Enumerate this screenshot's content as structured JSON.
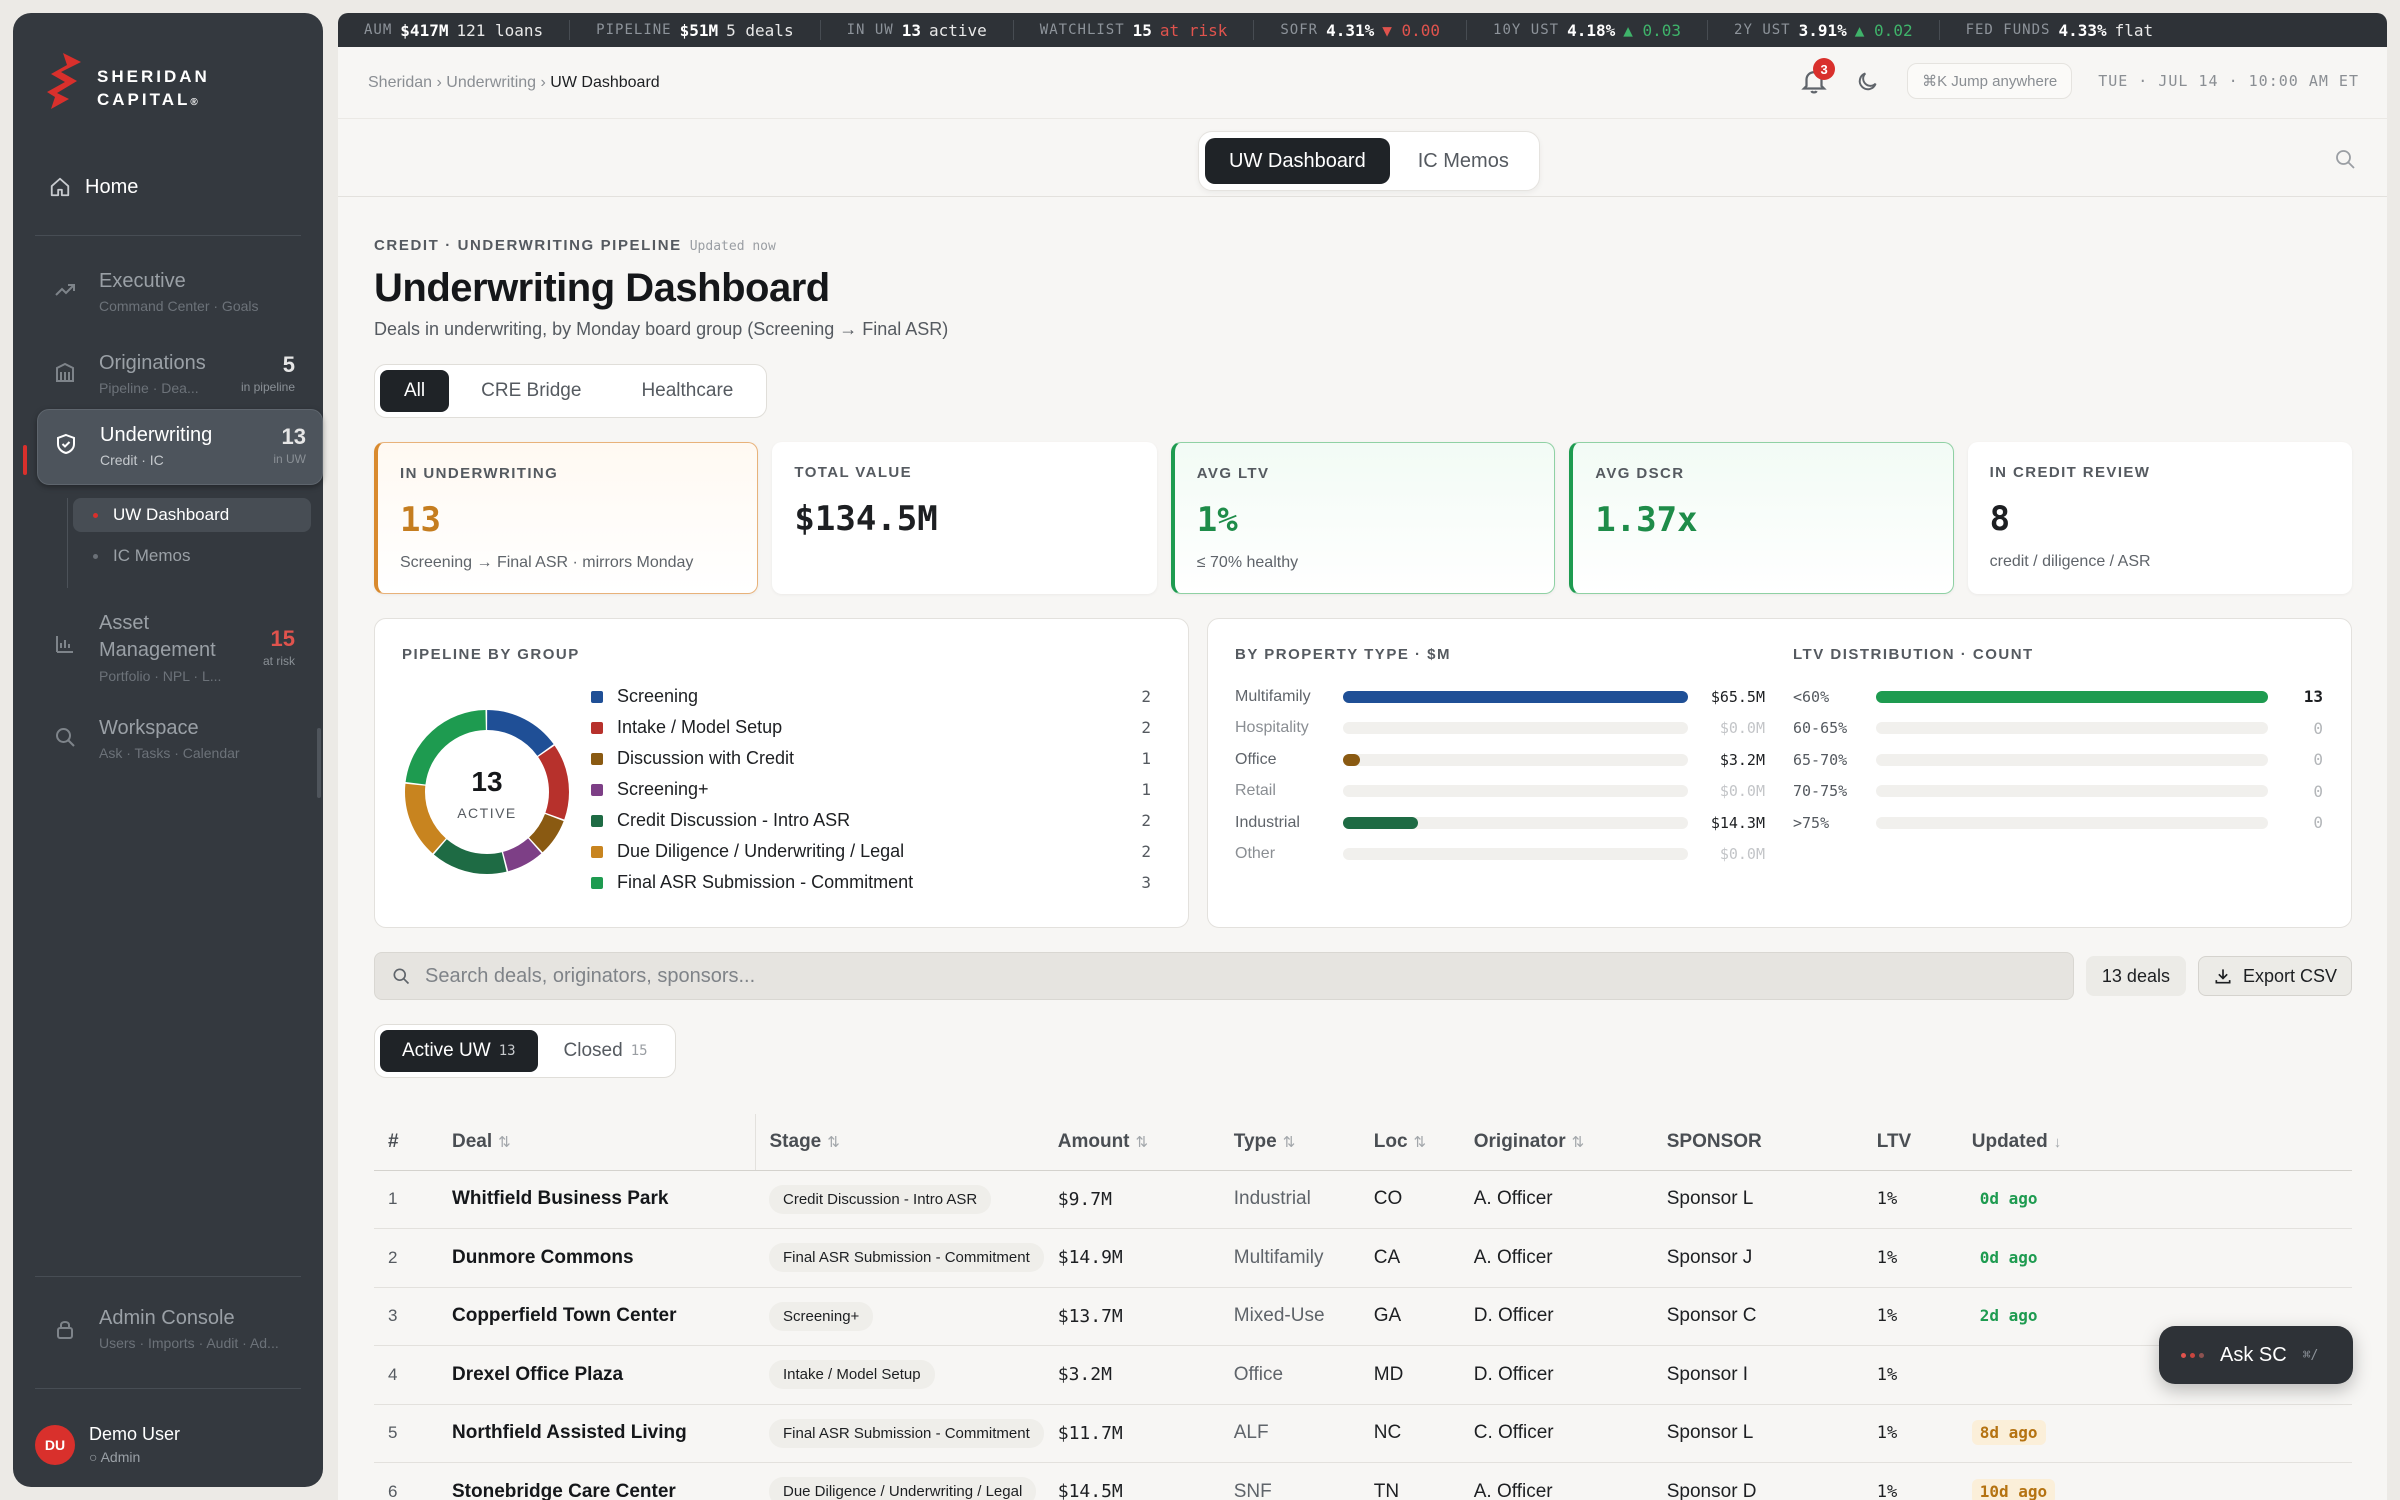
{
  "brand": {
    "line1": "SHERIDAN",
    "line2": "CAPITAL",
    "line2_suffix": "®"
  },
  "nav": {
    "home": "Home",
    "items": [
      {
        "title": "Executive",
        "sub": "Command Center · Goals",
        "count": "",
        "count_label": ""
      },
      {
        "title": "Originations",
        "sub": "Pipeline · Dea...",
        "count": "5",
        "count_label": "in pipeline"
      },
      {
        "title": "Underwriting",
        "sub": "Credit · IC",
        "count": "13",
        "count_label": "in UW"
      },
      {
        "title": "Asset Management",
        "sub": "Portfolio · NPL · L...",
        "count": "15",
        "count_label": "at risk"
      },
      {
        "title": "Workspace",
        "sub": "Ask · Tasks · Calendar",
        "count": "",
        "count_label": ""
      }
    ],
    "subnav": [
      "UW Dashboard",
      "IC Memos"
    ],
    "admin": {
      "title": "Admin Console",
      "sub": "Users · Imports · Audit · Ad..."
    },
    "user": {
      "initials": "DU",
      "name": "Demo User",
      "role": "Admin"
    }
  },
  "ticker": [
    {
      "label": "AUM",
      "value": "$417M",
      "extra": "121 loans",
      "extra_class": ""
    },
    {
      "label": "PIPELINE",
      "value": "$51M",
      "extra": "5 deals",
      "extra_class": ""
    },
    {
      "label": "IN UW",
      "value": "13",
      "extra": "active",
      "extra_class": ""
    },
    {
      "label": "WATCHLIST",
      "value": "15",
      "extra": "at risk",
      "extra_class": "risk"
    },
    {
      "label": "SOFR",
      "value": "4.31%",
      "extra": "▼ 0.00",
      "extra_class": "down"
    },
    {
      "label": "10Y UST",
      "value": "4.18%",
      "extra": "▲ 0.03",
      "extra_class": "up"
    },
    {
      "label": "2Y UST",
      "value": "3.91%",
      "extra": "▲ 0.02",
      "extra_class": "up"
    },
    {
      "label": "FED FUNDS",
      "value": "4.33%",
      "extra": "flat",
      "extra_class": ""
    }
  ],
  "breadcrumb": {
    "a": "Sheridan",
    "b": "Underwriting",
    "c": "UW Dashboard"
  },
  "notifications": "3",
  "jump": "⌘K  Jump anywhere",
  "clock": "TUE · JUL 14 · 10:00 AM ET",
  "views": [
    "UW Dashboard",
    "IC Memos"
  ],
  "page": {
    "eyebrow": "CREDIT · UNDERWRITING PIPELINE",
    "updated": "Updated now",
    "title": "Underwriting Dashboard",
    "desc": "Deals in underwriting, by Monday board group (Screening → Final ASR)",
    "filters": [
      "All",
      "CRE Bridge",
      "Healthcare"
    ]
  },
  "kpis": [
    {
      "label": "IN UNDERWRITING",
      "value": "13",
      "note": "Screening → Final ASR · mirrors Monday"
    },
    {
      "label": "TOTAL VALUE",
      "value": "$134.5M",
      "note": ""
    },
    {
      "label": "AVG LTV",
      "value": "1%",
      "note": "≤ 70% healthy"
    },
    {
      "label": "AVG DSCR",
      "value": "1.37x",
      "note": ""
    },
    {
      "label": "IN CREDIT REVIEW",
      "value": "8",
      "note": "credit / diligence / ASR"
    }
  ],
  "pipeline": {
    "title": "PIPELINE BY GROUP",
    "total": "13",
    "total_label": "ACTIVE",
    "groups": [
      {
        "name": "Screening",
        "count": 2,
        "color": "#1f4f96"
      },
      {
        "name": "Intake / Model Setup",
        "count": 2,
        "color": "#b7312c"
      },
      {
        "name": "Discussion with Credit",
        "count": 1,
        "color": "#8a5a12"
      },
      {
        "name": "Screening+",
        "count": 1,
        "color": "#7d3f86"
      },
      {
        "name": "Credit Discussion - Intro ASR",
        "count": 2,
        "color": "#1e6b44"
      },
      {
        "name": "Due Diligence / Underwriting / Legal",
        "count": 2,
        "color": "#c8841f"
      },
      {
        "name": "Final ASR Submission - Commitment",
        "count": 3,
        "color": "#1e9b50"
      }
    ]
  },
  "chart_data": [
    {
      "type": "pie",
      "title": "PIPELINE BY GROUP",
      "categories": [
        "Screening",
        "Intake / Model Setup",
        "Discussion with Credit",
        "Screening+",
        "Credit Discussion - Intro ASR",
        "Due Diligence / Underwriting / Legal",
        "Final ASR Submission - Commitment"
      ],
      "values": [
        2,
        2,
        1,
        1,
        2,
        2,
        3
      ]
    },
    {
      "type": "bar",
      "title": "BY PROPERTY TYPE · $M",
      "categories": [
        "Multifamily",
        "Hospitality",
        "Office",
        "Retail",
        "Industrial",
        "Other"
      ],
      "values": [
        65.5,
        0.0,
        3.2,
        0.0,
        14.3,
        0.0
      ],
      "labels": [
        "$65.5M",
        "$0.0M",
        "$3.2M",
        "$0.0M",
        "$14.3M",
        "$0.0M"
      ],
      "colors": [
        "#1f4f96",
        "#1f4f96",
        "#8a5a12",
        "#1f4f96",
        "#1e6b44",
        "#1f4f96"
      ],
      "xlim": [
        0,
        65.5
      ]
    },
    {
      "type": "bar",
      "title": "LTV DISTRIBUTION · COUNT",
      "categories": [
        "<60%",
        "60-65%",
        "65-70%",
        "70-75%",
        ">75%"
      ],
      "values": [
        13,
        0,
        0,
        0,
        0
      ],
      "xlim": [
        0,
        13
      ]
    }
  ],
  "search": {
    "placeholder": "Search deals, originators, sponsors..."
  },
  "deal_count": "13 deals",
  "export_label": "Export CSV",
  "tabs": [
    {
      "label": "Active UW",
      "count": "13"
    },
    {
      "label": "Closed",
      "count": "15"
    }
  ],
  "table": {
    "headers": [
      "#",
      "Deal",
      "Stage",
      "Amount",
      "Type",
      "Loc",
      "Originator",
      "SPONSOR",
      "LTV",
      "Updated"
    ],
    "rows": [
      [
        "1",
        "Whitfield Business Park",
        "Credit Discussion - Intro ASR",
        "$9.7M",
        "Industrial",
        "CO",
        "A. Officer",
        "Sponsor L",
        "1%",
        "0d ago"
      ],
      [
        "2",
        "Dunmore Commons",
        "Final ASR Submission - Commitment",
        "$14.9M",
        "Multifamily",
        "CA",
        "A. Officer",
        "Sponsor J",
        "1%",
        "0d ago"
      ],
      [
        "3",
        "Copperfield Town Center",
        "Screening+",
        "$13.7M",
        "Mixed-Use",
        "GA",
        "D. Officer",
        "Sponsor C",
        "1%",
        "2d ago"
      ],
      [
        "4",
        "Drexel Office Plaza",
        "Intake / Model Setup",
        "$3.2M",
        "Office",
        "MD",
        "D. Officer",
        "Sponsor I",
        "1%",
        ""
      ],
      [
        "5",
        "Northfield Assisted Living",
        "Final ASR Submission - Commitment",
        "$11.7M",
        "ALF",
        "NC",
        "C. Officer",
        "Sponsor L",
        "1%",
        "8d ago"
      ],
      [
        "6",
        "Stonebridge Care Center",
        "Due Diligence / Underwriting / Legal",
        "$14.5M",
        "SNF",
        "TN",
        "A. Officer",
        "Sponsor D",
        "1%",
        "10d ago"
      ]
    ]
  },
  "ask": {
    "label": "Ask SC",
    "shortcut": "⌘/"
  }
}
